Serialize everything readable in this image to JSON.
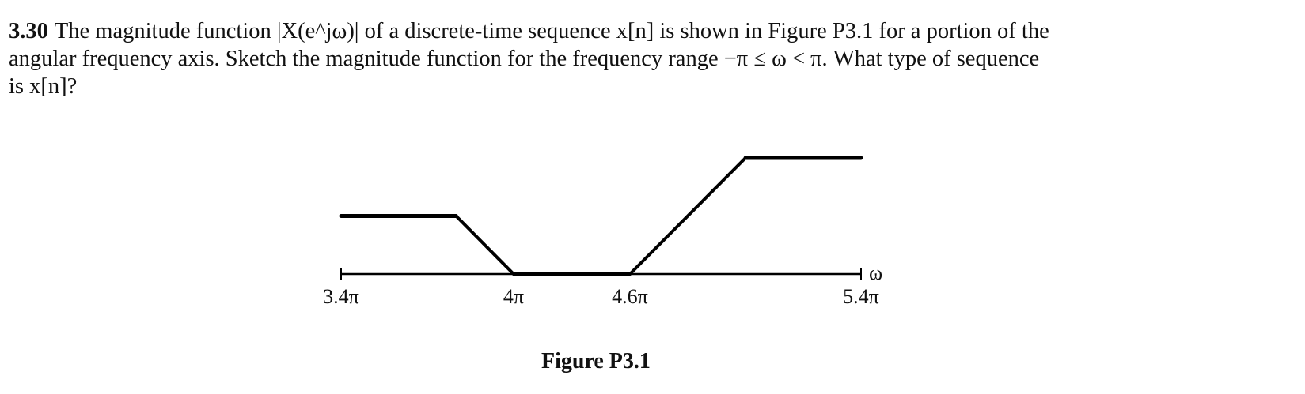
{
  "problem": {
    "number": "3.30",
    "line1": "The magnitude function |X(e^jω)| of a discrete-time sequence x[n] is shown in Figure P3.1 for a portion of the",
    "line2": "angular frequency axis. Sketch the magnitude function for the frequency range −π ≤ ω < π. What type of sequence",
    "line3": "is x[n]?"
  },
  "figure": {
    "caption": "Figure P3.1"
  },
  "chart_data": {
    "type": "line",
    "title": "",
    "xlabel": "ω",
    "ylabel": "",
    "x_unit": "π",
    "xlim": [
      3.4,
      5.4
    ],
    "x_ticks": [
      3.4,
      4.0,
      4.6,
      5.4
    ],
    "x_tick_labels": [
      "3.4π",
      "4π",
      "4.6π",
      "5.4π"
    ],
    "grid": false,
    "series": [
      {
        "x": [
          3.4,
          3.8,
          4.0,
          4.6,
          5.0,
          5.4
        ],
        "y": [
          0.5,
          0.5,
          0,
          0,
          1,
          1
        ]
      }
    ],
    "line_color": "#000000"
  }
}
